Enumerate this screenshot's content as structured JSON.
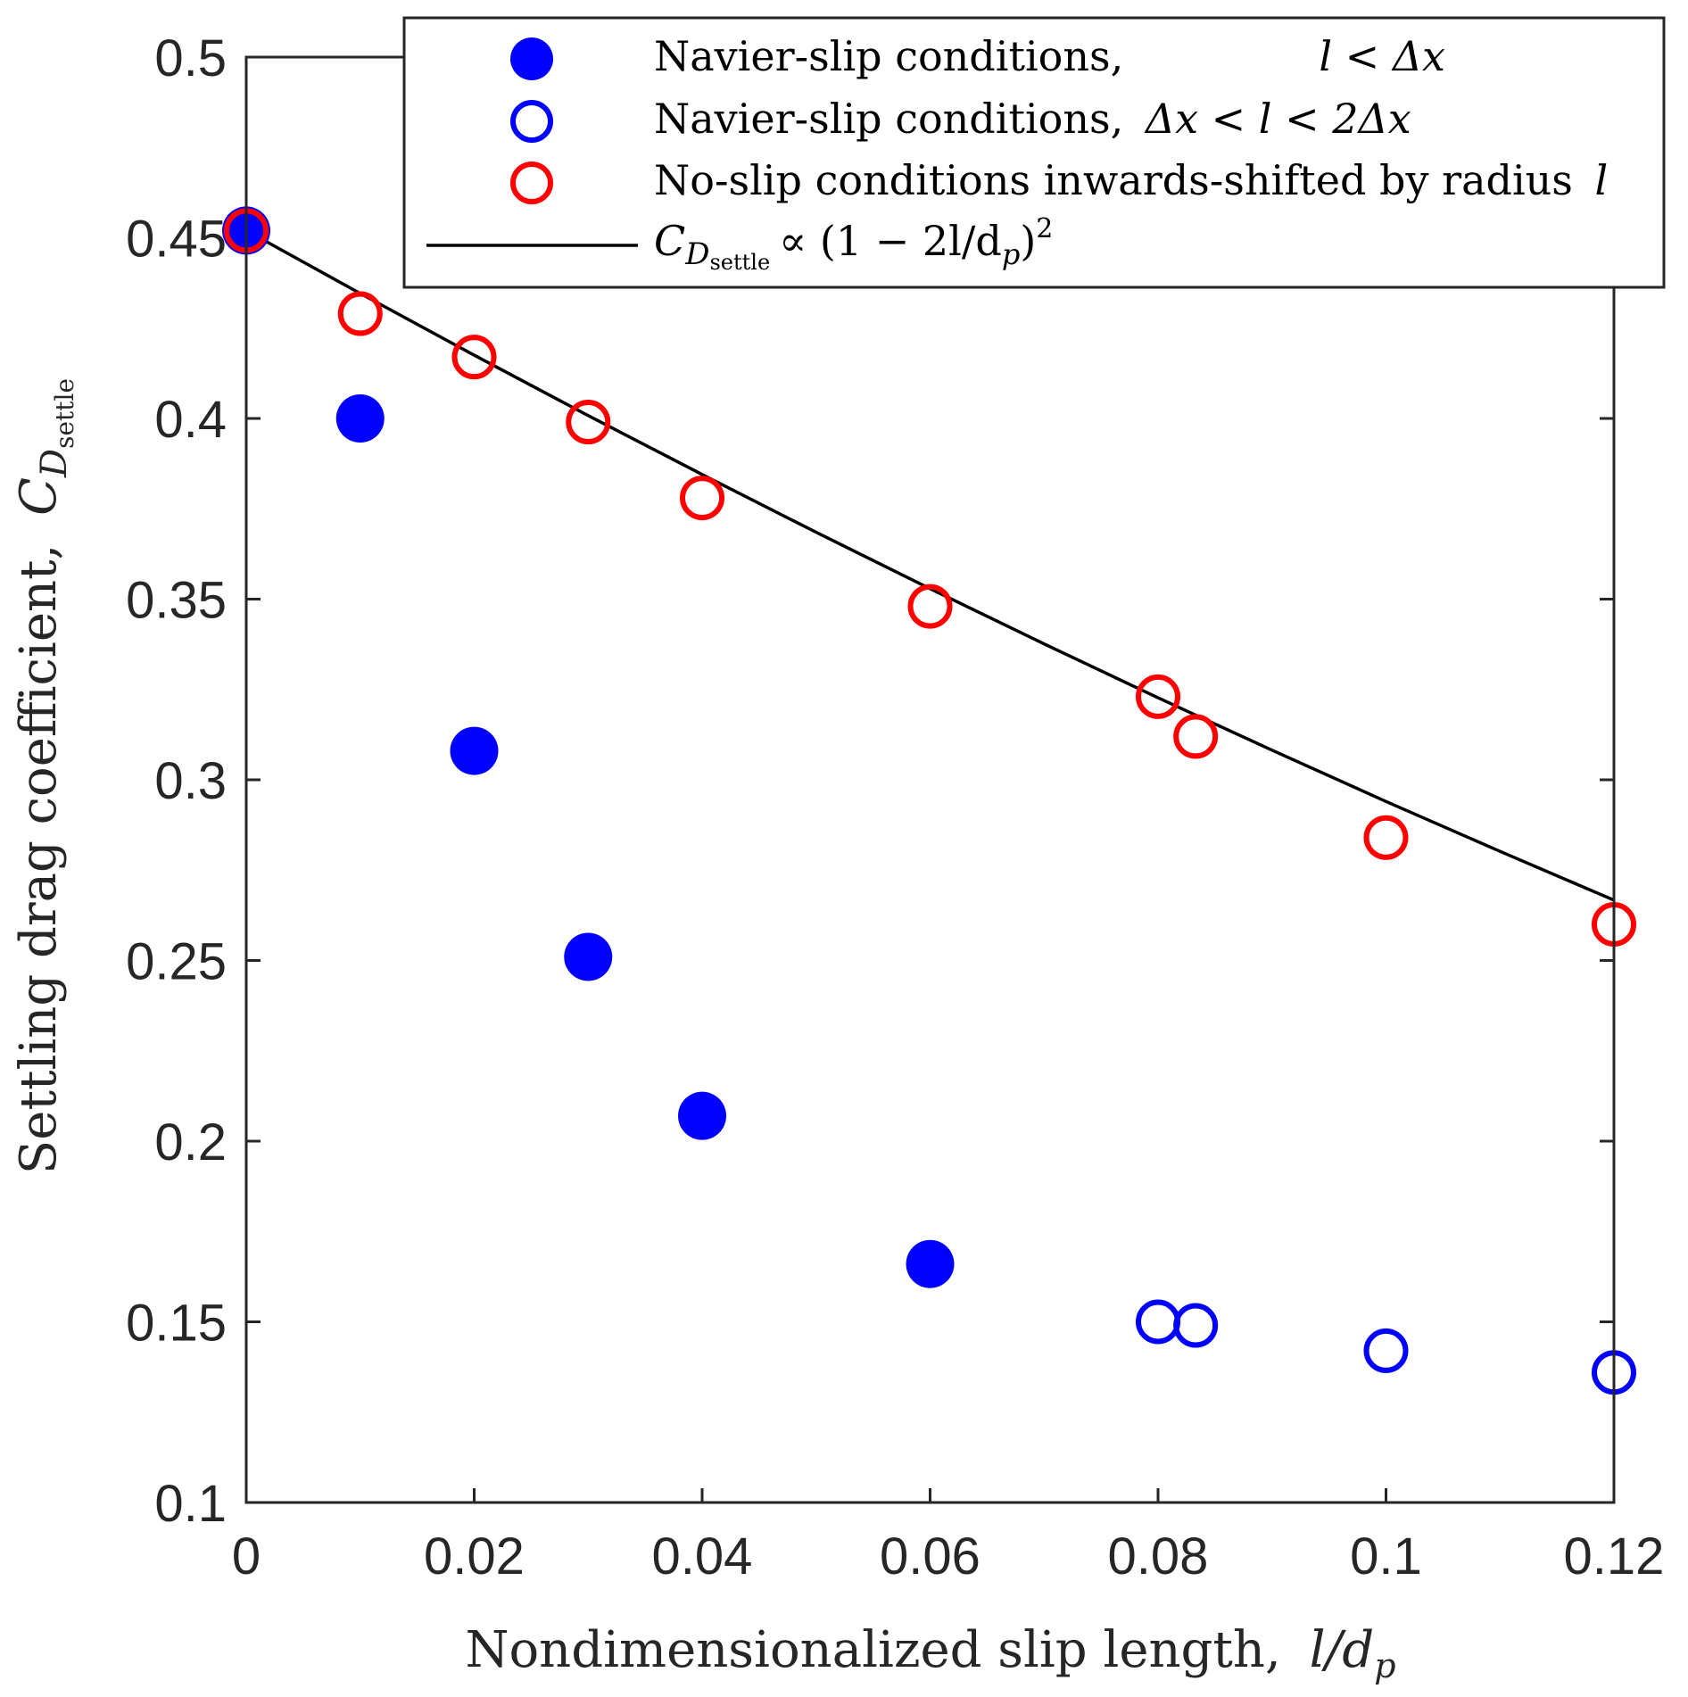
{
  "chart_data": {
    "type": "scatter",
    "xlabel_text": "Nondimensionalized slip length,",
    "xlabel_math": "l/dp",
    "ylabel_text": "Settling drag coefficient,",
    "ylabel_math": "CD settle",
    "xlim": [
      0,
      0.12
    ],
    "ylim": [
      0.1,
      0.5
    ],
    "xticks": [
      "0",
      "0.02",
      "0.04",
      "0.06",
      "0.08",
      "0.1",
      "0.12"
    ],
    "xtick_values": [
      0,
      0.02,
      0.04,
      0.06,
      0.08,
      0.1,
      0.12
    ],
    "yticks": [
      "0.1",
      "0.15",
      "0.2",
      "0.25",
      "0.3",
      "0.35",
      "0.4",
      "0.45",
      "0.5"
    ],
    "ytick_values": [
      0.1,
      0.15,
      0.2,
      0.25,
      0.3,
      0.35,
      0.4,
      0.45,
      0.5
    ],
    "legend_position": "top-right",
    "series": [
      {
        "name": "Navier-slip conditions, l < Δx",
        "marker": "filled-circle",
        "color": "#0000ff",
        "x": [
          0,
          0.01,
          0.02,
          0.03,
          0.04,
          0.06
        ],
        "y": [
          0.452,
          0.4,
          0.308,
          0.251,
          0.207,
          0.166
        ]
      },
      {
        "name": "Navier-slip conditions, Δx < l < 2Δx",
        "marker": "open-circle",
        "color": "#0000ff",
        "x": [
          0.08,
          0.0833,
          0.1,
          0.12
        ],
        "y": [
          0.15,
          0.149,
          0.142,
          0.136
        ]
      },
      {
        "name": "No-slip conditions inwards-shifted by radius l",
        "marker": "open-circle",
        "color": "#ff0000",
        "x": [
          0,
          0.01,
          0.02,
          0.03,
          0.04,
          0.06,
          0.08,
          0.0833,
          0.1,
          0.12
        ],
        "y": [
          0.452,
          0.429,
          0.417,
          0.399,
          0.378,
          0.348,
          0.323,
          0.312,
          0.284,
          0.26
        ]
      },
      {
        "name": "CD settle ∝ (1 − 2l/dp)²",
        "marker": "line",
        "color": "#000000",
        "x": [
          0,
          0.01,
          0.02,
          0.03,
          0.04,
          0.05,
          0.06,
          0.07,
          0.08,
          0.09,
          0.1,
          0.11,
          0.12
        ],
        "y": [
          0.452,
          0.4346,
          0.4175,
          0.4008,
          0.3845,
          0.3685,
          0.3529,
          0.3376,
          0.3227,
          0.3082,
          0.294,
          0.2802,
          0.2667
        ]
      }
    ],
    "legend": {
      "s1_text": "Navier-slip conditions,",
      "s1_math": "l < Δx",
      "s2_text": "Navier-slip conditions,",
      "s2_math": "Δx < l < 2Δx",
      "s3_text": "No-slip conditions inwards-shifted by radius",
      "s3_math": "l",
      "s4_math_C": "C",
      "s4_math_D": "D",
      "s4_sub": "settle",
      "s4_rest": "∝ (1 − 2l/d",
      "s4_p": "p",
      "s4_close": ")",
      "s4_sup": "2"
    },
    "xlabel_l": "l/d",
    "xlabel_p": "p",
    "ylabel_C": "C",
    "ylabel_D": "D",
    "ylabel_sub": "settle"
  }
}
